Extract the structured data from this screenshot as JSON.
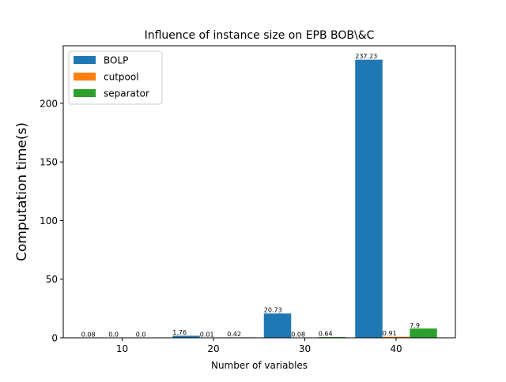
{
  "chart_data": {
    "type": "bar",
    "title": "Influence of instance size on EPB BOB\\&C",
    "xlabel": "Number of variables",
    "ylabel": "Computation time(s)",
    "categories": [
      "10",
      "20",
      "30",
      "40"
    ],
    "ylim": [
      0,
      249.1
    ],
    "yticks": [
      0,
      50,
      100,
      150,
      200
    ],
    "grid": false,
    "legend_position": "top-left",
    "series": [
      {
        "name": "BOLP",
        "color": "#1f77b4",
        "values": [
          0.08,
          1.76,
          20.73,
          237.23
        ],
        "labels": [
          "0.08",
          "1.76",
          "20.73",
          "237.23"
        ]
      },
      {
        "name": "cutpool",
        "color": "#ff7f0e",
        "values": [
          0.0,
          0.01,
          0.08,
          0.91
        ],
        "labels": [
          "0.0",
          "0.01",
          "0.08",
          "0.91"
        ]
      },
      {
        "name": "separator",
        "color": "#2ca02c",
        "values": [
          0.0,
          0.42,
          0.64,
          7.9
        ],
        "labels": [
          "0.0",
          "0.42",
          "0.64",
          "7.9"
        ]
      }
    ]
  }
}
